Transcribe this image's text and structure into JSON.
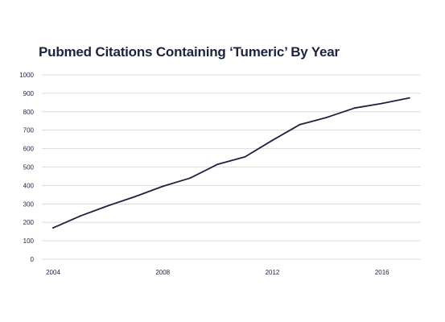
{
  "chart_data": {
    "type": "line",
    "title": "Pubmed Citations Containing ‘Tumeric’ By Year",
    "xlabel": "",
    "ylabel": "",
    "x": [
      2004,
      2005,
      2006,
      2007,
      2008,
      2009,
      2010,
      2011,
      2012,
      2013,
      2014,
      2015,
      2016,
      2017
    ],
    "series": [
      {
        "values": [
          170,
          235,
          290,
          340,
          395,
          440,
          515,
          555,
          645,
          730,
          770,
          820,
          845,
          875
        ]
      }
    ],
    "xlim": [
      2004,
      2017.3
    ],
    "ylim": [
      0,
      1000
    ],
    "xticks": [
      "2004",
      "2008",
      "2012",
      "2016"
    ],
    "yticks": [
      "0",
      "100",
      "200",
      "300",
      "400",
      "500",
      "600",
      "700",
      "800",
      "900",
      "1000"
    ],
    "grid": "horizontal",
    "legend": "none",
    "colors": {
      "line": "#1b2342",
      "grid": "#d3d3d3",
      "text": "#1b2342"
    }
  }
}
